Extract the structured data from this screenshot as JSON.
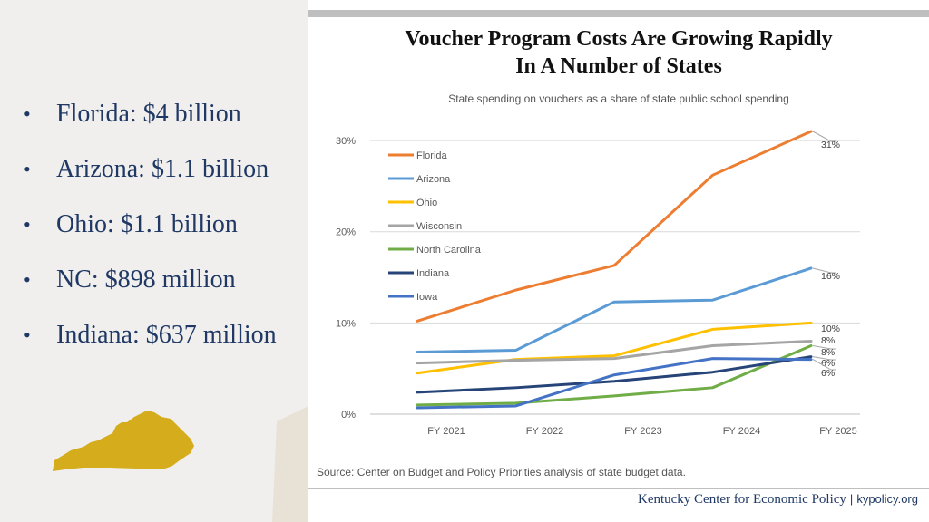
{
  "left_panel": {
    "bullets": [
      {
        "marker": "•",
        "text": "Florida: $4 billion"
      },
      {
        "marker": "•",
        "text": "Arizona: $1.1 billion"
      },
      {
        "marker": "•",
        "text": "Ohio: $1.1 billion"
      },
      {
        "marker": "•",
        "text": "NC: $898 million"
      },
      {
        "marker": "•",
        "text": "Indiana: $637 million"
      }
    ],
    "map_color": "#d4ac1c",
    "background_color": "#f1efee"
  },
  "footer": {
    "source": "Source: Center on Budget and Policy Priorities analysis of state budget data.",
    "org": "Kentucky Center for Economic Policy",
    "separator": "|",
    "site": "kypolicy.org"
  },
  "chart_data": {
    "type": "line",
    "title_line1": "Voucher Program Costs Are Growing Rapidly",
    "title_line2": "In A Number of States",
    "subtitle": "State spending on vouchers as a share of state public school spending",
    "categories": [
      "FY 2021",
      "FY 2022",
      "FY 2023",
      "FY 2024",
      "FY 2025"
    ],
    "ylim": [
      0,
      31
    ],
    "yticks": [
      {
        "value": 0,
        "label": "0%"
      },
      {
        "value": 10,
        "label": "10%"
      },
      {
        "value": 20,
        "label": "20%"
      },
      {
        "value": 30,
        "label": "30%"
      }
    ],
    "grid": true,
    "legend_position": "top-left",
    "series": [
      {
        "name": "Florida",
        "color": "#ed7d31",
        "values": [
          10.2,
          13.6,
          16.3,
          26.2,
          31
        ],
        "end_label": "31%"
      },
      {
        "name": "Arizona",
        "color": "#5b9bd5",
        "values": [
          6.8,
          7,
          12.3,
          12.5,
          16
        ],
        "end_label": "16%"
      },
      {
        "name": "Ohio",
        "color": "#ffc000",
        "values": [
          4.5,
          6,
          6.4,
          9.3,
          10
        ],
        "end_label": "10%"
      },
      {
        "name": "Wisconsin",
        "color": "#a5a5a5",
        "values": [
          5.6,
          5.9,
          6.1,
          7.5,
          8
        ],
        "end_label": "8%"
      },
      {
        "name": "North Carolina",
        "color": "#70ad47",
        "values": [
          1,
          1.2,
          2,
          2.9,
          7.5
        ],
        "end_label": "8%"
      },
      {
        "name": "Indiana",
        "color": "#264478",
        "values": [
          2.4,
          2.9,
          3.6,
          4.6,
          6.3
        ],
        "end_label": "6%"
      },
      {
        "name": "Iowa",
        "color": "#4472c4",
        "values": [
          0.7,
          0.9,
          4.3,
          6.1,
          6
        ],
        "end_label": "6%"
      }
    ]
  }
}
